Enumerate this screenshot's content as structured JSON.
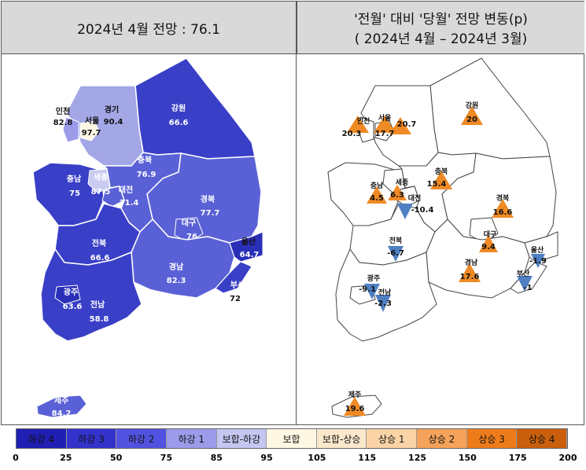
{
  "left_title": "2024년 4월 전망 : 76.1",
  "right_title_line1": "'전월' 대비 '당월' 전망 변동(p)",
  "right_title_line2": "( 2024년 4월 –  2024년 3월)",
  "left_regions": {
    "incheon": {
      "name": "인천",
      "value": "82.8"
    },
    "gyeonggi": {
      "name": "경기",
      "value": "90.4"
    },
    "seoul": {
      "name": "서울",
      "value": "97.7"
    },
    "gangwon": {
      "name": "강원",
      "value": "66.6"
    },
    "chungbuk": {
      "name": "충북",
      "value": "76.9"
    },
    "chungnam": {
      "name": "충남",
      "value": "75"
    },
    "sejong": {
      "name": "세종",
      "value": "87.5"
    },
    "daejeon": {
      "name": "대전",
      "value": "71.4"
    },
    "gyeongbuk": {
      "name": "경북",
      "value": "77.7"
    },
    "daegu": {
      "name": "대구",
      "value": "76"
    },
    "jeonbuk": {
      "name": "전북",
      "value": "66.6"
    },
    "ulsan": {
      "name": "울산",
      "value": "64.7"
    },
    "gyeongnam": {
      "name": "경남",
      "value": "82.3"
    },
    "busan": {
      "name": "부산",
      "value": "72"
    },
    "gwangju": {
      "name": "광주",
      "value": "63.6"
    },
    "jeonnam": {
      "name": "전남",
      "value": "58.8"
    },
    "jeju": {
      "name": "제주",
      "value": "84.2"
    }
  },
  "right_regions": {
    "incheon": {
      "name": "인천",
      "value": "20.3"
    },
    "seoul": {
      "name": "서울",
      "value": "17.7"
    },
    "gyeonggi": {
      "value": "20.7"
    },
    "gangwon": {
      "name": "강원",
      "value": "20"
    },
    "chungnam": {
      "name": "충남",
      "value": "4.5"
    },
    "sejong": {
      "name": "세종",
      "value": "6.3"
    },
    "daejeon": {
      "name": "대전",
      "value": "-10.4"
    },
    "chungbuk": {
      "name": "충북",
      "value": "15.4"
    },
    "gyeongbuk": {
      "name": "경북",
      "value": "16.6"
    },
    "jeonbuk": {
      "name": "전북",
      "value": "-6.7"
    },
    "daegu": {
      "name": "대구",
      "value": "9.4"
    },
    "ulsan": {
      "name": "울산",
      "value": "-1.9"
    },
    "gyeongnam": {
      "name": "경남",
      "value": "17.6"
    },
    "busan": {
      "name": "부산",
      "value": "-1"
    },
    "gwangju": {
      "name": "광주",
      "value": "-9.1"
    },
    "jeonnam": {
      "name": "전남",
      "value": "-2.3"
    },
    "jeju": {
      "name": "제주",
      "value": "19.6"
    }
  },
  "legend": [
    {
      "label": "하강 4",
      "color": "#1f1fb4"
    },
    {
      "label": "하강 3",
      "color": "#3333cc"
    },
    {
      "label": "하강 2",
      "color": "#5252e0"
    },
    {
      "label": "하강 1",
      "color": "#9b9bea"
    },
    {
      "label": "보합-하강",
      "color": "#c6c6f2"
    },
    {
      "label": "보합",
      "color": "#fdf7e3"
    },
    {
      "label": "보합-상승",
      "color": "#fbe8cc"
    },
    {
      "label": "상승 1",
      "color": "#fad3a6"
    },
    {
      "label": "상승 2",
      "color": "#f5a25a"
    },
    {
      "label": "상승 3",
      "color": "#ee7b1a"
    },
    {
      "label": "상승 4",
      "color": "#c95f0c"
    }
  ],
  "ticks": [
    "0",
    "25",
    "50",
    "75",
    "85",
    "95",
    "105",
    "115",
    "125",
    "150",
    "175",
    "200"
  ],
  "colors": {
    "up": "#f08a24",
    "down": "#4e7fc2",
    "map_dark": "#3a3fc7",
    "map_mid": "#5a61d6",
    "map_light": "#a3a7e6",
    "map_pale": "#c9cbf0"
  }
}
